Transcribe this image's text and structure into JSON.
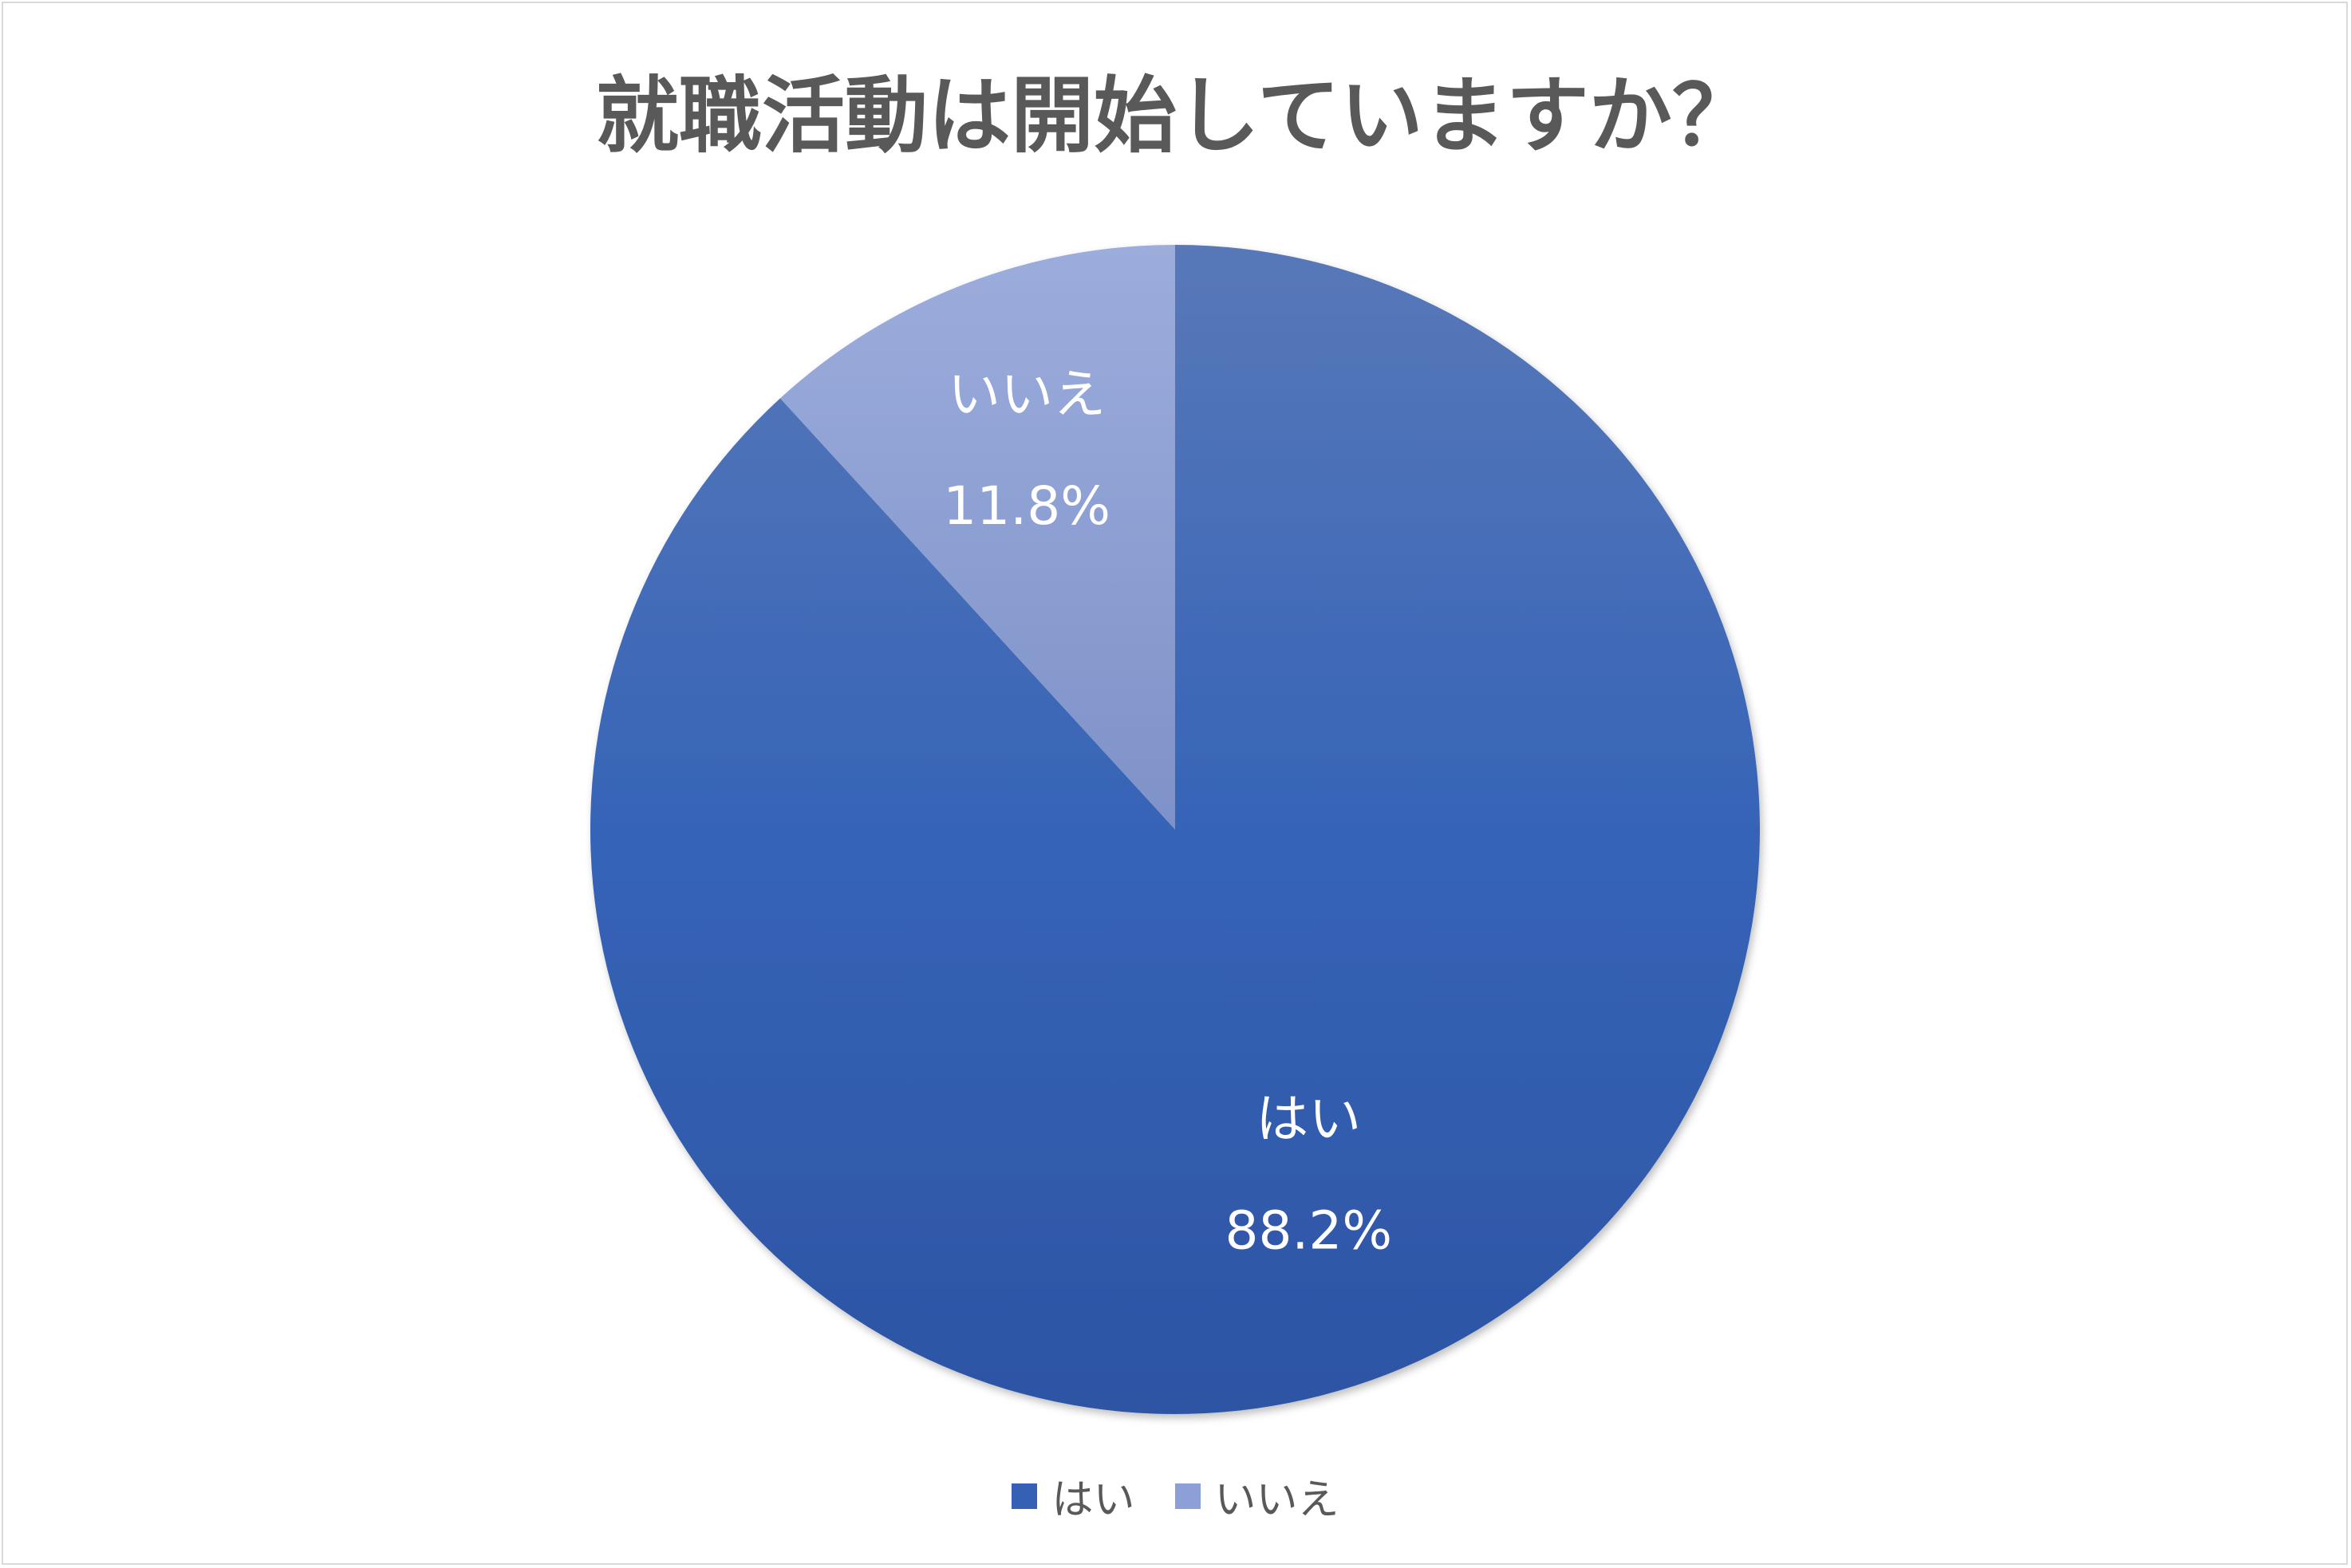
{
  "chart_data": {
    "type": "pie",
    "title": "就職活動は開始していますか？",
    "slices": [
      {
        "label": "はい",
        "value": 88.2,
        "value_label": "88.2%",
        "color": "#3560B4"
      },
      {
        "label": "いいえ",
        "value": 11.8,
        "value_label": "11.8%",
        "color": "#8CA0D7"
      }
    ],
    "start_angle_deg": 0,
    "direction": "clockwise",
    "legend": {
      "position": "bottom",
      "entries": [
        "はい",
        "いいえ"
      ]
    }
  }
}
